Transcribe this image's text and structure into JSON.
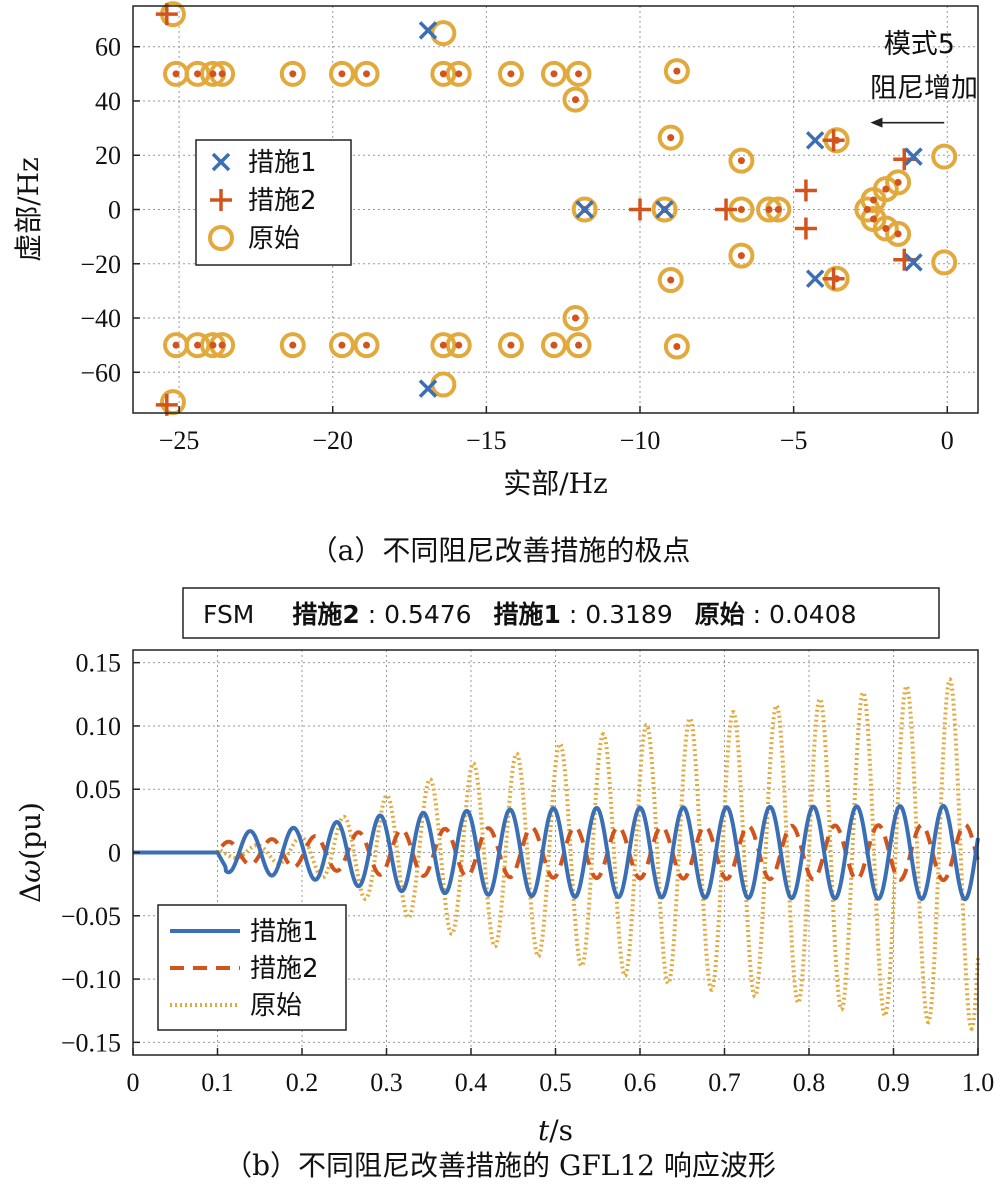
{
  "colors": {
    "s1": "#3a6fb5",
    "s2": "#d2541c",
    "orig": "#e2a93c",
    "grid": "#999999",
    "axis": "#222222"
  },
  "chart_data": [
    {
      "type": "scatter",
      "xlabel": "实部/Hz",
      "ylabel": "虚部/Hz",
      "xlim": [
        -26.5,
        1
      ],
      "ylim": [
        -75,
        75
      ],
      "xticks": [
        -25,
        -20,
        -15,
        -10,
        -5,
        0
      ],
      "xtick_labels": [
        "−25",
        "−20",
        "−15",
        "−10",
        "−5",
        "0"
      ],
      "yticks": [
        -60,
        -40,
        -20,
        0,
        20,
        40,
        60
      ],
      "ytick_labels": [
        "−60",
        "−40",
        "−20",
        "0",
        "20",
        "40",
        "60"
      ],
      "grid": true,
      "legend_position": "left-middle",
      "caption": "（a）不同阻尼改善措施的极点",
      "annotation": {
        "line1": "模式5",
        "line2": "阻尼增加",
        "arrow_from": [
          -0.1,
          32
        ],
        "arrow_to": [
          -2.5,
          32
        ]
      },
      "series": [
        {
          "name": "措施1",
          "marker": "x",
          "points": [
            [
              -16.9,
              66
            ],
            [
              -16.9,
              -66
            ],
            [
              -4.3,
              25.5
            ],
            [
              -4.3,
              -25.5
            ],
            [
              -1.1,
              19.5
            ],
            [
              -1.1,
              -19.5
            ],
            [
              -11.8,
              0
            ],
            [
              -9.2,
              0
            ]
          ]
        },
        {
          "name": "措施2",
          "marker": "+",
          "points": [
            [
              -25.4,
              72
            ],
            [
              -25.4,
              -72
            ],
            [
              -3.7,
              25.5
            ],
            [
              -3.7,
              -25.5
            ],
            [
              -1.4,
              18.5
            ],
            [
              -1.4,
              -18.5
            ],
            [
              -4.6,
              7
            ],
            [
              -4.6,
              -7
            ],
            [
              -10,
              0
            ],
            [
              -7.2,
              0
            ]
          ]
        },
        {
          "name": "原始",
          "marker": "o",
          "points": [
            [
              -25.2,
              72
            ],
            [
              -25.2,
              -71
            ],
            [
              -16.4,
              65
            ],
            [
              -16.4,
              -64.5
            ],
            [
              -3.6,
              25.5
            ],
            [
              -3.6,
              -25.5
            ],
            [
              -0.1,
              19.5
            ],
            [
              -0.1,
              -19.5
            ],
            [
              -25.1,
              50
            ],
            [
              -24.4,
              50
            ],
            [
              -23.9,
              50
            ],
            [
              -23.6,
              50
            ],
            [
              -21.3,
              50
            ],
            [
              -19.7,
              50
            ],
            [
              -18.9,
              50
            ],
            [
              -16.4,
              50
            ],
            [
              -15.9,
              50
            ],
            [
              -14.2,
              50
            ],
            [
              -12.8,
              50
            ],
            [
              -12,
              50
            ],
            [
              -25.1,
              -50
            ],
            [
              -24.4,
              -50
            ],
            [
              -23.9,
              -50
            ],
            [
              -23.6,
              -50
            ],
            [
              -21.3,
              -50
            ],
            [
              -19.7,
              -50
            ],
            [
              -18.9,
              -50
            ],
            [
              -16.4,
              -50
            ],
            [
              -15.9,
              -50
            ],
            [
              -14.2,
              -50
            ],
            [
              -12.8,
              -50
            ],
            [
              -12,
              -50
            ],
            [
              -12.1,
              40.5
            ],
            [
              -12.1,
              -40
            ],
            [
              -8.8,
              51
            ],
            [
              -8.8,
              -50.5
            ],
            [
              -9,
              26.5
            ],
            [
              -9,
              -26
            ],
            [
              -6.7,
              18
            ],
            [
              -6.7,
              -17
            ],
            [
              -11.8,
              0
            ],
            [
              -9.2,
              0
            ],
            [
              -6.7,
              0
            ],
            [
              -5.8,
              0
            ],
            [
              -5.5,
              0
            ],
            [
              -1.6,
              10
            ],
            [
              -2,
              7.5
            ],
            [
              -2.4,
              3.5
            ],
            [
              -2.6,
              0
            ],
            [
              -2.4,
              -3.5
            ],
            [
              -2,
              -7
            ],
            [
              -1.6,
              -9
            ]
          ]
        }
      ]
    },
    {
      "type": "line",
      "xlabel_t": "t",
      "xlabel_s": "/s",
      "ylabel_delta": "Δ",
      "ylabel_omega": "ω",
      "ylabel_unit": "(pu)",
      "xlim": [
        0,
        1.0
      ],
      "ylim": [
        -0.16,
        0.16
      ],
      "xticks": [
        0,
        0.1,
        0.2,
        0.3,
        0.4,
        0.5,
        0.6,
        0.7,
        0.8,
        0.9,
        1.0
      ],
      "xtick_labels": [
        "0",
        "0.1",
        "0.2",
        "0.3",
        "0.4",
        "0.5",
        "0.6",
        "0.7",
        "0.8",
        "0.9",
        "1.0"
      ],
      "yticks": [
        -0.15,
        -0.1,
        -0.05,
        0,
        0.05,
        0.1,
        0.15
      ],
      "ytick_labels": [
        "−0.15",
        "−0.10",
        "−0.05",
        "0",
        "0.05",
        "0.10",
        "0.15"
      ],
      "grid": true,
      "legend_position": "bottom-left",
      "caption": "（b）不同阻尼改善措施的 GFL12 响应波形",
      "fsm_box": {
        "label": "FSM",
        "items": [
          {
            "name": "措施2",
            "value": ": 0.5476"
          },
          {
            "name": "措施1",
            "value": ": 0.3189"
          },
          {
            "name": "原始",
            "value": ": 0.0408"
          }
        ]
      },
      "step_time": 0.1,
      "oscillation_freq_hz": 19.5,
      "series": [
        {
          "name": "措施1",
          "style": "solid",
          "envelope": {
            "t": [
              0.1,
              0.2,
              0.3,
              0.4,
              0.5,
              1.0
            ],
            "amp": [
              0.015,
              0.02,
              0.03,
              0.033,
              0.035,
              0.037
            ]
          }
        },
        {
          "name": "措施2",
          "style": "dashed",
          "envelope": {
            "t": [
              0.1,
              0.2,
              0.3,
              0.5,
              1.0
            ],
            "amp": [
              0.008,
              0.012,
              0.018,
              0.02,
              0.022
            ]
          }
        },
        {
          "name": "原始",
          "style": "dotted",
          "envelope": {
            "t": [
              0.1,
              0.15,
              0.2,
              0.3,
              0.4,
              0.5,
              0.6,
              0.7,
              0.8,
              0.9,
              1.0
            ],
            "amp": [
              0.003,
              0.006,
              0.012,
              0.045,
              0.07,
              0.085,
              0.1,
              0.11,
              0.12,
              0.13,
              0.14
            ]
          }
        }
      ]
    }
  ]
}
